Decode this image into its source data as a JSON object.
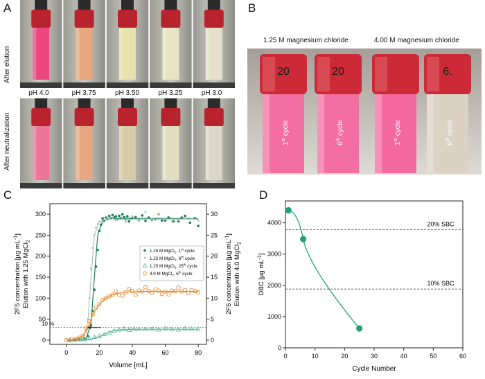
{
  "panels": {
    "a": "A",
    "b": "B",
    "c": "C",
    "d": "D"
  },
  "panel_a": {
    "row1_label": "After elution",
    "row2_label": "After neutralization",
    "ph_labels": [
      "pH 4.0",
      "pH 3.75",
      "pH 3.50",
      "pH 3.25",
      "pH 3.0"
    ],
    "row1_colors": [
      "#ee3d7a",
      "#e9a57a",
      "#e9e5ae",
      "#e9e8c4",
      "#e7e3cc"
    ],
    "row2_colors": [
      "#ee6f95",
      "#e9a47e",
      "#d9cda6",
      "#e3e0c2",
      "#ddd9c9"
    ]
  },
  "panel_b": {
    "left_title": "1.25 M magnesium chloride",
    "right_title": "4.00 M magnesium chloride",
    "cap_marks": [
      "20",
      "20",
      "",
      "6."
    ],
    "columns": [
      {
        "cycle_num": "1",
        "cycle_sup": "st",
        "cycle_word": "cycle",
        "color": "#f36ea1"
      },
      {
        "cycle_num": "6",
        "cycle_sup": "th",
        "cycle_word": "cycle",
        "color": "#f36ea1"
      },
      {
        "cycle_num": "1",
        "cycle_sup": "st",
        "cycle_word": "cycle",
        "color": "#f46aa0"
      },
      {
        "cycle_num": "6",
        "cycle_sup": "th",
        "cycle_word": "cycle",
        "color": "#dcd2c4"
      }
    ]
  },
  "chart_data": [
    {
      "type": "scatter",
      "xlabel": "Volume [mL]",
      "ylabel_left_1": "2F5 concentration [µg mL",
      "ylabel_left_2": "Elution with 1.25 MgCl",
      "ylabel_right_1": "2F5 concentration [µg mL",
      "ylabel_right_2": "Elution with 4.0 MgCl",
      "xlim": [
        -10,
        85
      ],
      "ylim": [
        -10,
        325
      ],
      "ylim_right": [
        -1,
        32.5
      ],
      "xticks": [
        0,
        20,
        40,
        60,
        80
      ],
      "yticks": [
        0,
        50,
        100,
        150,
        200,
        250,
        300
      ],
      "yticks_right": [
        0,
        5,
        10,
        15,
        20,
        25,
        30
      ],
      "threshold": {
        "y": 30,
        "label": "10 %"
      },
      "legend": {
        "position": "right-middle",
        "entries": [
          {
            "pre": "1.25 M MgCl",
            "post": ", 1",
            "sup": "st",
            "tail": " cycle"
          },
          {
            "pre": "1.25 M MgCl",
            "post": ", 6",
            "sup": "th",
            "tail": " cycle"
          },
          {
            "pre": "1.25 M MgCl",
            "post": ", 25",
            "sup": "th",
            "tail": " cycle"
          },
          {
            "pre": "4.0 M MgCl",
            "post": ", 6",
            "sup": "th",
            "tail": " cycle"
          }
        ]
      },
      "series": [
        {
          "marker": "filled-circle",
          "color": "#1a7d57",
          "fit": [
            [
              0,
              0
            ],
            [
              12,
              3
            ],
            [
              15,
              40
            ],
            [
              17,
              150
            ],
            [
              19,
              250
            ],
            [
              22,
              285
            ],
            [
              26,
              290
            ],
            [
              80,
              290
            ]
          ],
          "points": [
            [
              2,
              0
            ],
            [
              5,
              1
            ],
            [
              8,
              2
            ],
            [
              11,
              4
            ],
            [
              13,
              10
            ],
            [
              15,
              35
            ],
            [
              16,
              70
            ],
            [
              17,
              120
            ],
            [
              18,
              175
            ],
            [
              19,
              215
            ],
            [
              20,
              260
            ],
            [
              21,
              275
            ],
            [
              22,
              290
            ],
            [
              23,
              285
            ],
            [
              24,
              292
            ],
            [
              25,
              288
            ],
            [
              26,
              296
            ],
            [
              27,
              290
            ],
            [
              28,
              298
            ],
            [
              29,
              292
            ],
            [
              30,
              295
            ],
            [
              31,
              288
            ],
            [
              32,
              296
            ],
            [
              33,
              290
            ],
            [
              34,
              300
            ],
            [
              35,
              293
            ],
            [
              36,
              288
            ],
            [
              37,
              295
            ],
            [
              38,
              283
            ],
            [
              39,
              289
            ],
            [
              40,
              290
            ],
            [
              42,
              293
            ],
            [
              44,
              285
            ],
            [
              46,
              297
            ],
            [
              48,
              284
            ],
            [
              50,
              292
            ],
            [
              52,
              287
            ],
            [
              54,
              288
            ],
            [
              56,
              300
            ],
            [
              58,
              285
            ],
            [
              60,
              285
            ],
            [
              62,
              292
            ],
            [
              65,
              283
            ],
            [
              68,
              283
            ],
            [
              70,
              292
            ],
            [
              72,
              296
            ],
            [
              75,
              280
            ],
            [
              78,
              290
            ],
            [
              80,
              272
            ]
          ]
        },
        {
          "marker": "small-dot",
          "color": "#a9c9b9",
          "fit": [
            [
              0,
              0
            ],
            [
              10,
              3
            ],
            [
              13,
              40
            ],
            [
              15,
              150
            ],
            [
              17,
              250
            ],
            [
              20,
              283
            ],
            [
              24,
              288
            ],
            [
              80,
              288
            ]
          ],
          "points": [
            [
              1,
              0
            ],
            [
              4,
              1
            ],
            [
              7,
              2
            ],
            [
              10,
              4
            ],
            [
              12,
              20
            ],
            [
              13,
              50
            ],
            [
              14,
              100
            ],
            [
              15,
              170
            ],
            [
              16,
              220
            ],
            [
              17,
              250
            ],
            [
              18,
              268
            ],
            [
              19,
              276
            ],
            [
              20,
              282
            ],
            [
              22,
              279
            ],
            [
              24,
              288
            ],
            [
              26,
              289
            ],
            [
              28,
              292
            ],
            [
              30,
              286
            ],
            [
              33,
              297
            ],
            [
              36,
              282
            ],
            [
              40,
              295
            ],
            [
              44,
              284
            ],
            [
              48,
              305
            ],
            [
              52,
              290
            ],
            [
              56,
              300
            ],
            [
              60,
              290
            ],
            [
              64,
              283
            ],
            [
              68,
              287
            ],
            [
              72,
              290
            ],
            [
              76,
              289
            ],
            [
              80,
              285
            ]
          ]
        },
        {
          "marker": "open-triangle",
          "color": "#4fb38e",
          "fit": [
            [
              0,
              0
            ],
            [
              15,
              2
            ],
            [
              20,
              8
            ],
            [
              25,
              18
            ],
            [
              30,
              24
            ],
            [
              40,
              26
            ],
            [
              80,
              26
            ]
          ],
          "points": [
            [
              2,
              0
            ],
            [
              5,
              1
            ],
            [
              8,
              2
            ],
            [
              11,
              3
            ],
            [
              14,
              4
            ],
            [
              17,
              7
            ],
            [
              20,
              10
            ],
            [
              23,
              14
            ],
            [
              26,
              18
            ],
            [
              29,
              22
            ],
            [
              32,
              25
            ],
            [
              35,
              27
            ],
            [
              38,
              24
            ],
            [
              41,
              27
            ],
            [
              44,
              26
            ],
            [
              48,
              26
            ],
            [
              52,
              27
            ],
            [
              56,
              25
            ],
            [
              60,
              28
            ],
            [
              64,
              26
            ],
            [
              68,
              25
            ],
            [
              72,
              28
            ],
            [
              76,
              27
            ],
            [
              80,
              26
            ]
          ]
        },
        {
          "marker": "open-circle",
          "color": "#e8892b",
          "fit": [
            [
              0,
              0
            ],
            [
              5,
              2
            ],
            [
              10,
              10
            ],
            [
              13,
              30
            ],
            [
              16,
              60
            ],
            [
              19,
              80
            ],
            [
              23,
              98
            ],
            [
              28,
              108
            ],
            [
              34,
              114
            ],
            [
              45,
              116
            ],
            [
              80,
              116
            ]
          ],
          "points": [
            [
              0,
              0
            ],
            [
              3,
              2
            ],
            [
              6,
              3
            ],
            [
              8,
              6
            ],
            [
              10,
              10
            ],
            [
              12,
              28
            ],
            [
              14,
              45
            ],
            [
              16,
              62
            ],
            [
              18,
              78
            ],
            [
              20,
              85
            ],
            [
              22,
              96
            ],
            [
              24,
              100
            ],
            [
              26,
              104
            ],
            [
              28,
              108
            ],
            [
              30,
              116
            ],
            [
              32,
              108
            ],
            [
              34,
              106
            ],
            [
              36,
              114
            ],
            [
              38,
              122
            ],
            [
              40,
              117
            ],
            [
              42,
              108
            ],
            [
              44,
              118
            ],
            [
              46,
              116
            ],
            [
              48,
              126
            ],
            [
              50,
              117
            ],
            [
              52,
              113
            ],
            [
              54,
              121
            ],
            [
              56,
              118
            ],
            [
              58,
              110
            ],
            [
              60,
              116
            ],
            [
              62,
              109
            ],
            [
              64,
              118
            ],
            [
              66,
              117
            ],
            [
              68,
              125
            ],
            [
              70,
              116
            ],
            [
              72,
              119
            ],
            [
              74,
              112
            ],
            [
              76,
              119
            ],
            [
              78,
              117
            ],
            [
              80,
              114
            ]
          ]
        }
      ]
    },
    {
      "type": "line",
      "xlabel": "Cycle Number",
      "ylabel_pre": "DBC [µg mL",
      "xlim": [
        0,
        60
      ],
      "ylim": [
        0,
        4700
      ],
      "xticks": [
        0,
        10,
        20,
        30,
        40,
        50,
        60
      ],
      "yticks": [
        0,
        1000,
        2000,
        3000,
        4000
      ],
      "points": [
        [
          1,
          4400
        ],
        [
          6,
          3480
        ],
        [
          25,
          620
        ]
      ],
      "color": "#23a07a",
      "reference_lines": [
        {
          "y": 3780,
          "label": "20% SBC"
        },
        {
          "y": 1880,
          "label": "10% SBC"
        }
      ]
    }
  ]
}
